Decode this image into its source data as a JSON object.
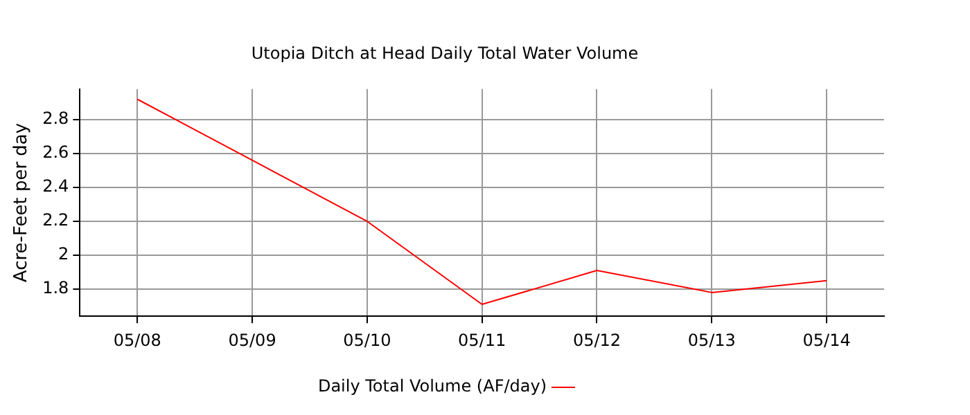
{
  "chart_data": {
    "type": "line",
    "title": "Utopia Ditch at Head Daily Total Water Volume",
    "ylabel": "Acre-Feet per day",
    "categories": [
      "05/08",
      "05/09",
      "05/10",
      "05/11",
      "05/12",
      "05/13",
      "05/14"
    ],
    "series": [
      {
        "name": "Daily Total Volume (AF/day)",
        "color": "#ff0000",
        "values": [
          2.92,
          2.56,
          2.2,
          1.71,
          1.91,
          1.78,
          1.85
        ]
      }
    ],
    "ylim": [
      1.64,
      2.98
    ],
    "yticks": [
      1.8,
      2,
      2.2,
      2.4,
      2.6,
      2.8
    ],
    "grid": true,
    "legend": "bottom",
    "marker": "none",
    "line_style": "solid"
  }
}
